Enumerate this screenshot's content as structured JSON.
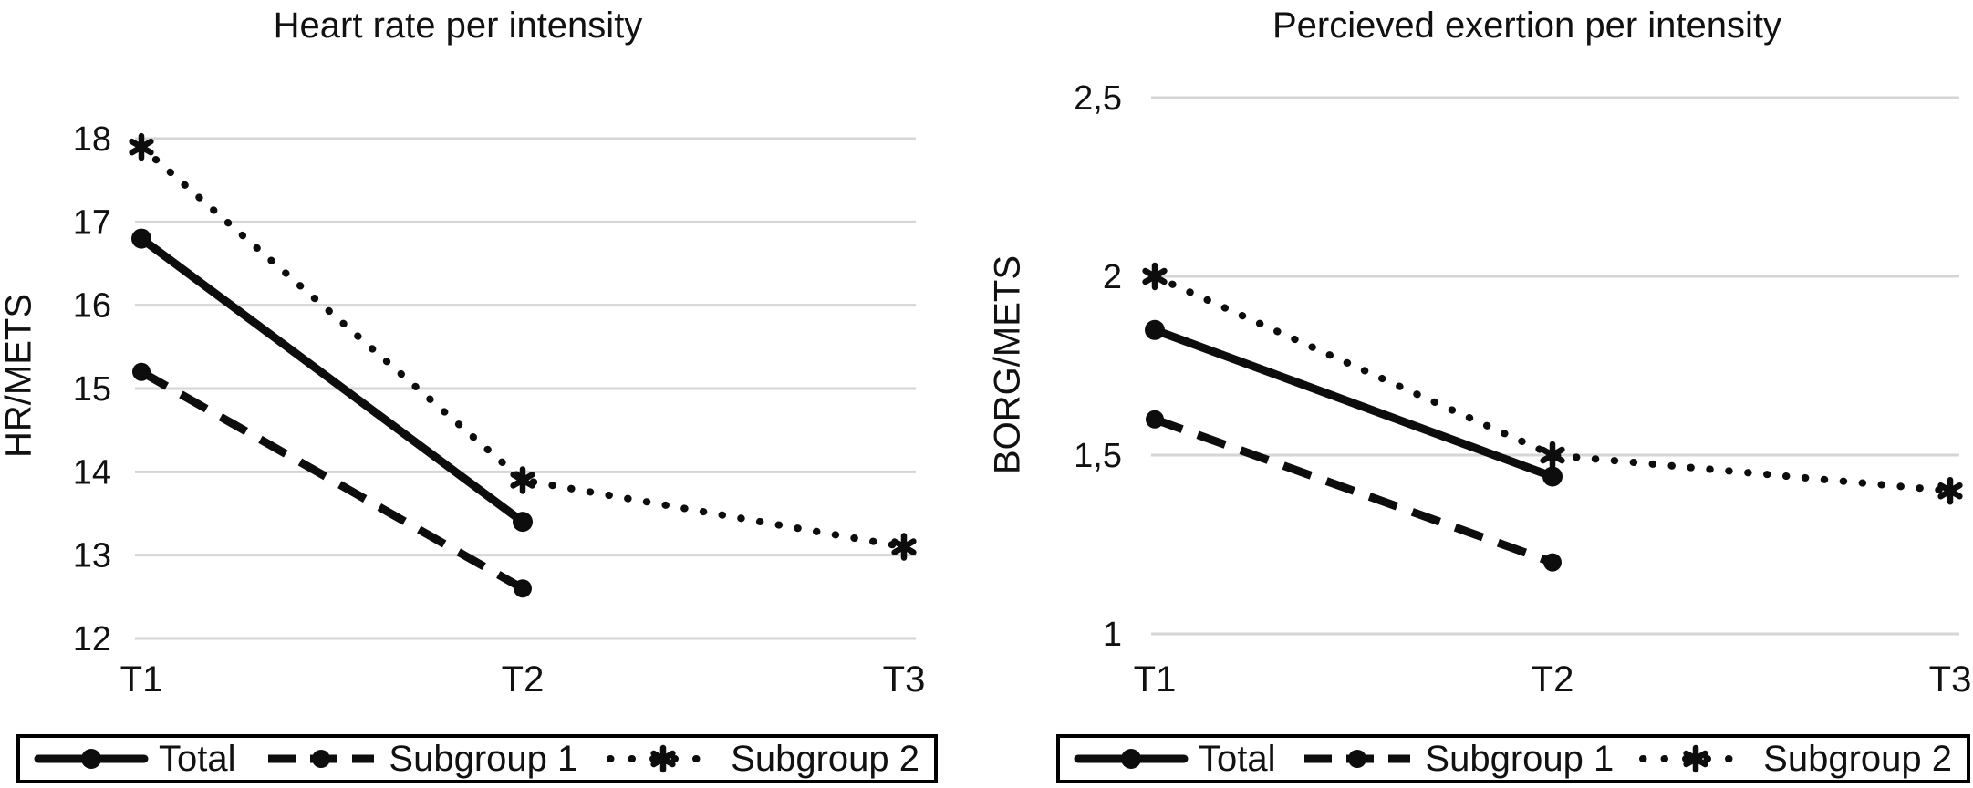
{
  "page": {
    "background": "#ffffff"
  },
  "colors": {
    "series": "#0d0d0d",
    "grid": "#d6d6d6",
    "text": "#111111",
    "legend_border": "#000000"
  },
  "chart_data": [
    {
      "type": "line",
      "title": "Heart rate per intensity",
      "xlabel": "",
      "ylabel": "HR/METS",
      "categories": [
        "T1",
        "T2",
        "T3"
      ],
      "ylim": [
        12,
        18
      ],
      "ytick_values": [
        12,
        13,
        14,
        15,
        16,
        17,
        18
      ],
      "ytick_labels": [
        "12",
        "13",
        "14",
        "15",
        "16",
        "17",
        "18"
      ],
      "grid": "horizontal",
      "legend_position": "bottom",
      "series": [
        {
          "name": "Total",
          "line_style": "solid",
          "marker": "circle",
          "values": [
            16.8,
            13.4,
            null
          ]
        },
        {
          "name": "Subgroup 1",
          "line_style": "dashed",
          "marker": "circle",
          "values": [
            15.2,
            12.6,
            null
          ]
        },
        {
          "name": "Subgroup 2",
          "line_style": "dotted",
          "marker": "star",
          "values": [
            17.9,
            13.9,
            13.1
          ]
        }
      ]
    },
    {
      "type": "line",
      "title": "Percieved exertion per intensity",
      "xlabel": "",
      "ylabel": "BORG/METS",
      "categories": [
        "T1",
        "T2",
        "T3"
      ],
      "ylim": [
        1,
        2.5
      ],
      "ytick_values": [
        1,
        1.5,
        2,
        2.5
      ],
      "ytick_labels": [
        "1",
        "1,5",
        "2",
        "2,5"
      ],
      "grid": "horizontal",
      "legend_position": "bottom",
      "series": [
        {
          "name": "Total",
          "line_style": "solid",
          "marker": "circle",
          "values": [
            1.85,
            1.44,
            null
          ]
        },
        {
          "name": "Subgroup 1",
          "line_style": "dashed",
          "marker": "circle",
          "values": [
            1.6,
            1.2,
            null
          ]
        },
        {
          "name": "Subgroup 2",
          "line_style": "dotted",
          "marker": "star",
          "values": [
            2.0,
            1.5,
            1.4
          ]
        }
      ]
    }
  ]
}
